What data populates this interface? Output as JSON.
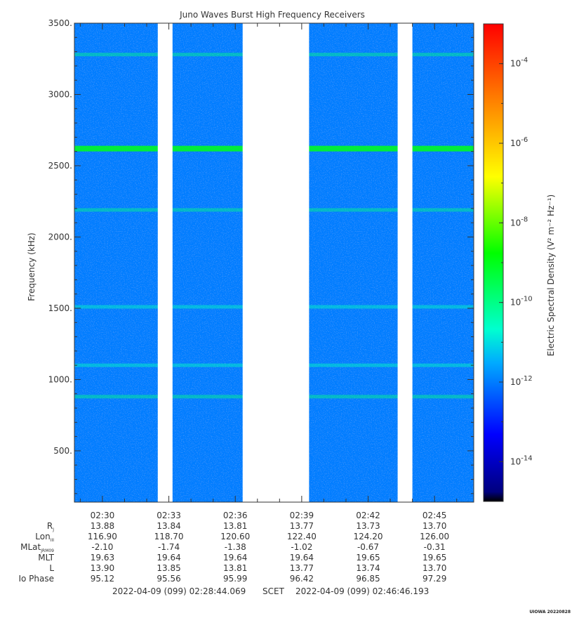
{
  "chart_data": {
    "type": "heatmap",
    "title": "Juno Waves Burst High Frequency Receivers",
    "ylabel": "Frequency (kHz)",
    "ylim": [
      140,
      3500
    ],
    "y_ticks": [
      {
        "value": 3500,
        "label": "3500."
      },
      {
        "value": 3000,
        "label": "3000."
      },
      {
        "value": 2500,
        "label": "2500."
      },
      {
        "value": 2000,
        "label": "2000."
      },
      {
        "value": 1500,
        "label": "1500."
      },
      {
        "value": 1000,
        "label": "1000."
      },
      {
        "value": 500,
        "label": "500."
      }
    ],
    "x_ticks": [
      "02:30",
      "02:33",
      "02:36",
      "02:39",
      "02:42",
      "02:45"
    ],
    "ephemeris": [
      {
        "label": "R",
        "sub": "J",
        "values": [
          "13.88",
          "13.84",
          "13.81",
          "13.77",
          "13.73",
          "13.70"
        ]
      },
      {
        "label": "Lon",
        "sub": "III",
        "values": [
          "116.90",
          "118.70",
          "120.60",
          "122.40",
          "124.20",
          "126.00"
        ]
      },
      {
        "label": "MLat",
        "sub": "JRM09",
        "values": [
          "-2.10",
          "-1.74",
          "-1.38",
          "-1.02",
          "-0.67",
          "-0.31"
        ]
      },
      {
        "label": "MLT",
        "sub": "",
        "values": [
          "19.63",
          "19.64",
          "19.64",
          "19.64",
          "19.65",
          "19.65"
        ]
      },
      {
        "label": "L",
        "sub": "",
        "values": [
          "13.90",
          "13.85",
          "13.81",
          "13.77",
          "13.74",
          "13.70"
        ]
      },
      {
        "label": "Io Phase",
        "sub": "",
        "values": [
          "95.12",
          "95.56",
          "95.99",
          "96.42",
          "96.85",
          "97.29"
        ]
      }
    ],
    "time_range": {
      "start": "2022-04-09 (099) 02:28:44.069",
      "frame": "SCET",
      "end": "2022-04-09 (099) 02:46:46.193"
    },
    "background_level": "1e-12",
    "data_gaps": [
      {
        "start": "02:32:30",
        "end": "02:33:10"
      },
      {
        "start": "02:36:20",
        "end": "02:39:20"
      },
      {
        "start": "02:43:20",
        "end": "02:44:00"
      }
    ],
    "emission_lines": [
      {
        "frequency_khz": 3280,
        "level": "1e-10"
      },
      {
        "frequency_khz": 2620,
        "level": "1e-9"
      },
      {
        "frequency_khz": 2190,
        "level": "1e-10"
      },
      {
        "frequency_khz": 1510,
        "level": "3e-11"
      },
      {
        "frequency_khz": 1100,
        "level": "3e-11"
      },
      {
        "frequency_khz": 880,
        "level": "1e-10"
      }
    ],
    "colorbar": {
      "label": "Electric Spectral Density (V² m⁻² Hz⁻¹)",
      "scale": "log",
      "range": [
        1e-15,
        0.001
      ],
      "ticks": [
        {
          "exp": "-4",
          "value": 0.0001
        },
        {
          "exp": "-6",
          "value": 1e-06
        },
        {
          "exp": "-8",
          "value": 1e-08
        },
        {
          "exp": "-10",
          "value": 1e-10
        },
        {
          "exp": "-12",
          "value": 1e-12
        },
        {
          "exp": "-14",
          "value": 1e-14
        }
      ]
    },
    "footer_stamp": "UIOWA 20220828"
  }
}
